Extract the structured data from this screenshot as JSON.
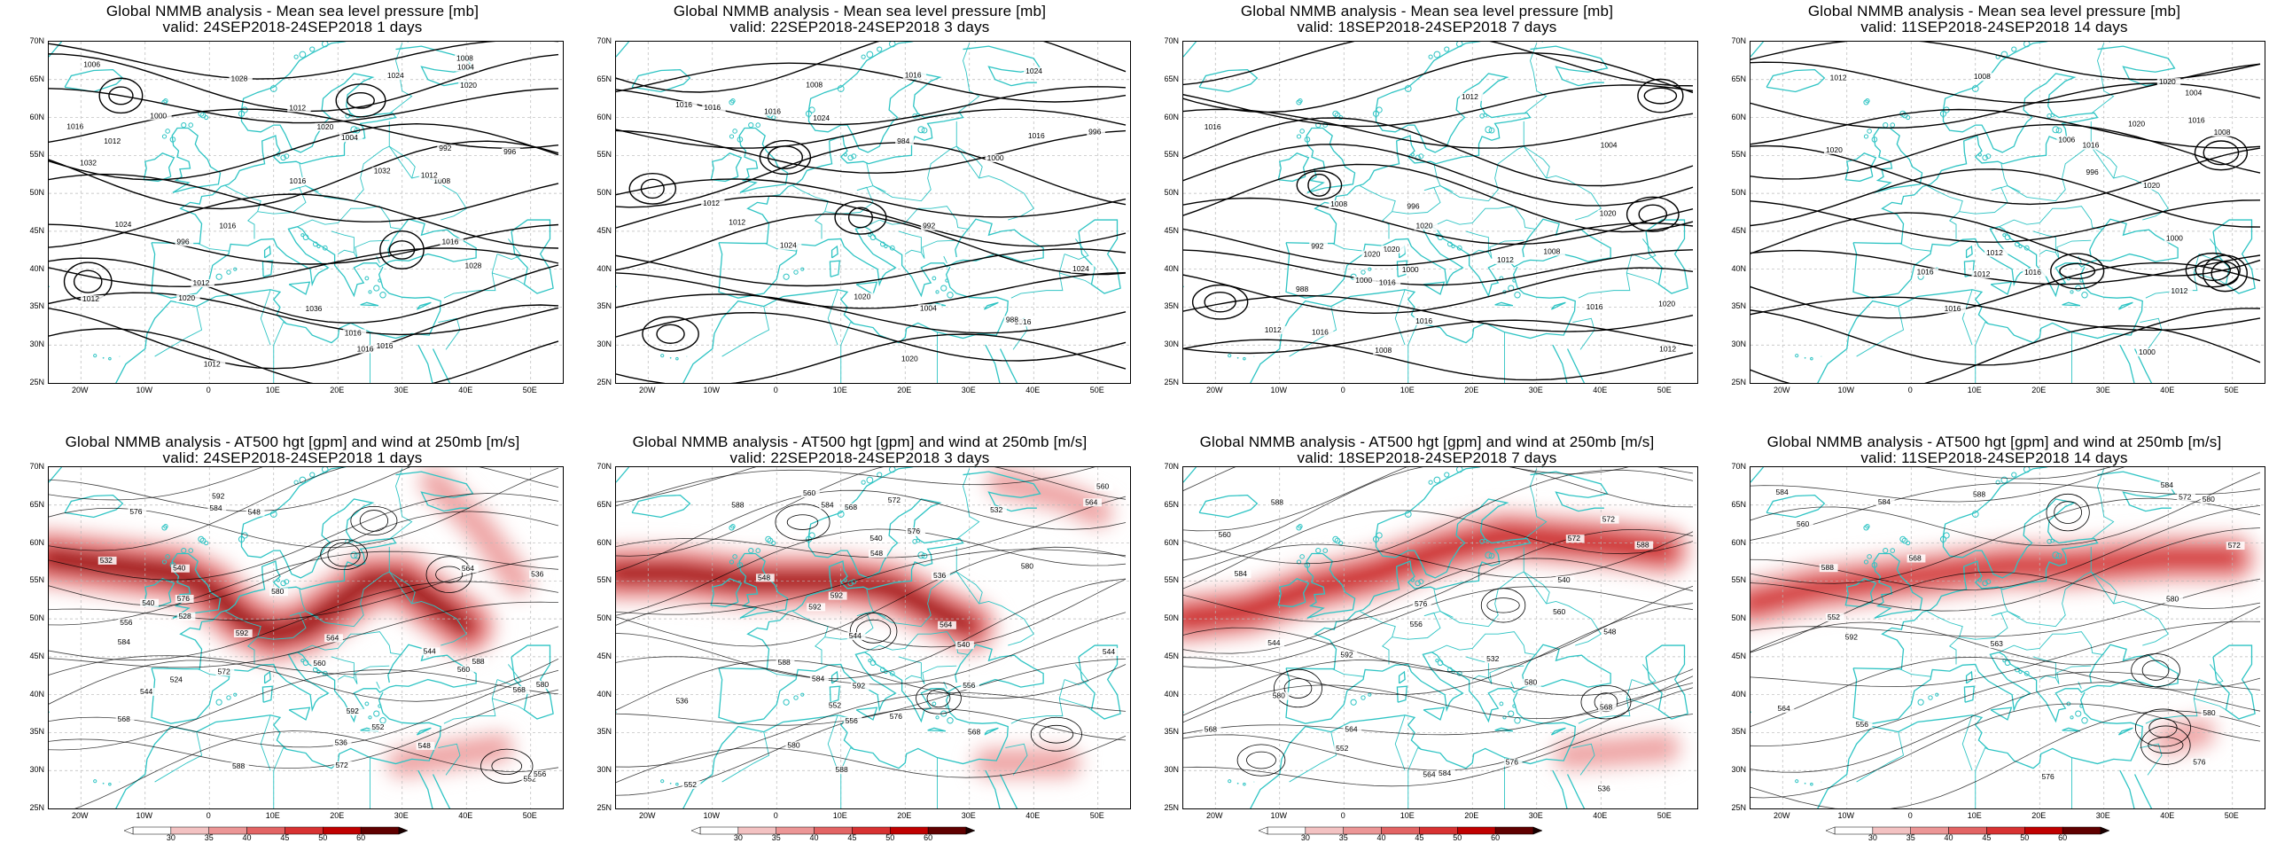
{
  "colors": {
    "coast": "#2fc4c4",
    "isobar": "#000000",
    "grid": "#b8b8b8",
    "jet_ramp": [
      "#f3c2c2",
      "#ec9696",
      "#e36464",
      "#d83232",
      "#c00000",
      "#600000",
      "#1a0000"
    ]
  },
  "axis": {
    "y_labels": [
      "70N",
      "65N",
      "60N",
      "55N",
      "50N",
      "45N",
      "40N",
      "35N",
      "30N",
      "25N"
    ],
    "x_labels": [
      "20W",
      "10W",
      "0",
      "10E",
      "20E",
      "30E",
      "40E",
      "50E"
    ]
  },
  "colorbar": {
    "labels": [
      "30",
      "35",
      "40",
      "45",
      "50",
      "60"
    ]
  },
  "row1": {
    "title": "Global NMMB analysis - Mean sea level pressure [mb]",
    "panels": [
      {
        "valid": "valid: 24SEP2018-24SEP2018  1 days",
        "contour_labels": [
          "1012",
          "1016",
          "1020",
          "1024",
          "1028",
          "1032",
          "1036",
          "1032",
          "1028",
          "1024",
          "1020",
          "1016",
          "1016",
          "996",
          "992",
          "996",
          "1000",
          "1004",
          "1008",
          "1016",
          "1012",
          "1004",
          "1006",
          "1012",
          "1012",
          "1016",
          "1020",
          "1016",
          "1012",
          "1016",
          "1008",
          "1012"
        ]
      },
      {
        "valid": "valid: 22SEP2018-24SEP2018  3 days",
        "contour_labels": [
          "1016",
          "1024",
          "1024",
          "984",
          "988",
          "992",
          "996",
          "1000",
          "1004",
          "1008",
          "1012",
          "1016",
          "1016",
          "1024",
          "1020",
          "1020",
          "1016",
          "1012",
          "1016",
          "1016",
          "1024"
        ]
      },
      {
        "valid": "valid: 18SEP2018-24SEP2018  7 days",
        "contour_labels": [
          "1000",
          "1008",
          "1012",
          "996",
          "992",
          "988",
          "1000",
          "1004",
          "1008",
          "1012",
          "1016",
          "1020",
          "1016",
          "1020",
          "1020",
          "1016",
          "1012",
          "1016",
          "1020",
          "1012",
          "1008",
          "1016",
          "1020"
        ]
      },
      {
        "valid": "valid: 11SEP2018-24SEP2018  14 days",
        "contour_labels": [
          "1000",
          "1006",
          "1012",
          "1016",
          "996",
          "1000",
          "1004",
          "1008",
          "1012",
          "1016",
          "1020",
          "1020",
          "1016",
          "1012",
          "1020",
          "1016",
          "1016",
          "1008",
          "1012",
          "1020"
        ]
      }
    ]
  },
  "row2": {
    "title": "Global NMMB analysis - AT500 hgt [gpm] and wind at 250mb [m/s]",
    "panels": [
      {
        "valid": "valid: 24SEP2018-24SEP2018  1 days",
        "contour_labels": [
          "536",
          "540",
          "544",
          "548",
          "552",
          "556",
          "560",
          "564",
          "568",
          "572",
          "576",
          "580",
          "584",
          "588",
          "592",
          "524",
          "528",
          "532",
          "536",
          "540",
          "544",
          "548",
          "552",
          "556",
          "560",
          "564",
          "568",
          "572",
          "576",
          "580",
          "584",
          "588",
          "592",
          "592"
        ]
      },
      {
        "valid": "valid: 22SEP2018-24SEP2018  3 days",
        "contour_labels": [
          "536",
          "540",
          "544",
          "548",
          "552",
          "556",
          "560",
          "564",
          "568",
          "572",
          "576",
          "580",
          "584",
          "588",
          "592",
          "532",
          "536",
          "540",
          "544",
          "548",
          "552",
          "556",
          "560",
          "564",
          "568",
          "572",
          "576",
          "580",
          "584",
          "588",
          "592",
          "588",
          "592"
        ]
      },
      {
        "valid": "valid: 18SEP2018-24SEP2018  7 days",
        "contour_labels": [
          "532",
          "536",
          "540",
          "544",
          "548",
          "552",
          "556",
          "560",
          "564",
          "568",
          "572",
          "576",
          "580",
          "584",
          "588",
          "592",
          "560",
          "564",
          "568",
          "572",
          "576",
          "580",
          "584",
          "588"
        ]
      },
      {
        "valid": "valid: 11SEP2018-24SEP2018  14 days",
        "contour_labels": [
          "552",
          "556",
          "560",
          "564",
          "568",
          "572",
          "576",
          "580",
          "584",
          "588",
          "592",
          "563",
          "572",
          "576",
          "580",
          "584",
          "588",
          "580",
          "584"
        ]
      }
    ]
  }
}
